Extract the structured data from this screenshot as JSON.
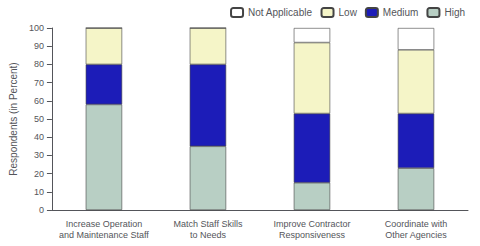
{
  "chart_data": {
    "type": "bar",
    "categories": [
      "Increase Operation\nand Maintenance Staff",
      "Match Staff Skills\nto Needs",
      "Improve Contractor\nResponsiveness",
      "Coordinate with\nOther Agencies"
    ],
    "series": [
      {
        "name": "High",
        "color": "#b8cfc4",
        "values": [
          58,
          35,
          15,
          23
        ]
      },
      {
        "name": "Medium",
        "color": "#1c1cb8",
        "values": [
          22,
          45,
          38,
          30
        ]
      },
      {
        "name": "Low",
        "color": "#f5f5c8",
        "values": [
          20,
          20,
          39,
          35
        ]
      },
      {
        "name": "Not Applicable",
        "color": "#ffffff",
        "values": [
          0,
          0,
          8,
          12
        ]
      }
    ],
    "ylabel": "Respondents (in Percent)",
    "ylim": [
      0,
      100
    ],
    "yticks": [
      0,
      10,
      20,
      30,
      40,
      50,
      60,
      70,
      80,
      90,
      100
    ],
    "stacked": true,
    "grid": false,
    "legend": "top"
  }
}
